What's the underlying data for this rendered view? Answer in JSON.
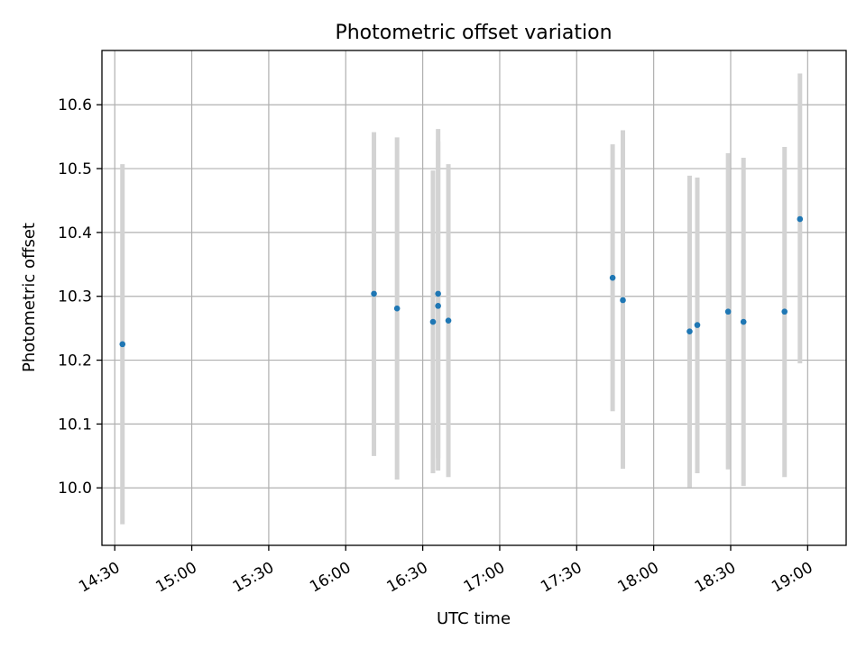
{
  "chart_data": {
    "type": "scatter",
    "title": "Photometric offset variation",
    "xlabel": "UTC time",
    "ylabel": "Photometric offset",
    "grid": true,
    "x_ticks": [
      "14:30",
      "15:00",
      "15:30",
      "16:00",
      "16:30",
      "17:00",
      "17:30",
      "18:00",
      "18:30",
      "19:00"
    ],
    "y_ticks": [
      "10.0",
      "10.1",
      "10.2",
      "10.3",
      "10.4",
      "10.5",
      "10.6"
    ],
    "xlim": [
      "14:25",
      "19:15"
    ],
    "ylim": [
      9.91,
      10.685
    ],
    "colors": {
      "point": "#1f77b4",
      "errorbar": "#d3d3d3",
      "grid": "#b0b0b0"
    },
    "points": [
      {
        "x": "14:33",
        "y": 10.225,
        "ylow": 9.943,
        "yhigh": 10.507
      },
      {
        "x": "16:11",
        "y": 10.304,
        "ylow": 10.05,
        "yhigh": 10.557
      },
      {
        "x": "16:20",
        "y": 10.281,
        "ylow": 10.013,
        "yhigh": 10.549
      },
      {
        "x": "16:34",
        "y": 10.26,
        "ylow": 10.023,
        "yhigh": 10.497
      },
      {
        "x": "16:36",
        "y": 10.304,
        "ylow": 10.046,
        "yhigh": 10.562
      },
      {
        "x": "16:36",
        "y": 10.285,
        "ylow": 10.027,
        "yhigh": 10.543
      },
      {
        "x": "16:40",
        "y": 10.262,
        "ylow": 10.017,
        "yhigh": 10.507
      },
      {
        "x": "17:44",
        "y": 10.329,
        "ylow": 10.12,
        "yhigh": 10.538
      },
      {
        "x": "17:48",
        "y": 10.294,
        "ylow": 10.03,
        "yhigh": 10.56
      },
      {
        "x": "18:14",
        "y": 10.245,
        "ylow": 10.001,
        "yhigh": 10.489
      },
      {
        "x": "18:17",
        "y": 10.255,
        "ylow": 10.023,
        "yhigh": 10.486
      },
      {
        "x": "18:29",
        "y": 10.276,
        "ylow": 10.029,
        "yhigh": 10.524
      },
      {
        "x": "18:35",
        "y": 10.26,
        "ylow": 10.003,
        "yhigh": 10.517
      },
      {
        "x": "18:51",
        "y": 10.276,
        "ylow": 10.017,
        "yhigh": 10.534
      },
      {
        "x": "18:57",
        "y": 10.421,
        "ylow": 10.195,
        "yhigh": 10.649
      }
    ]
  }
}
